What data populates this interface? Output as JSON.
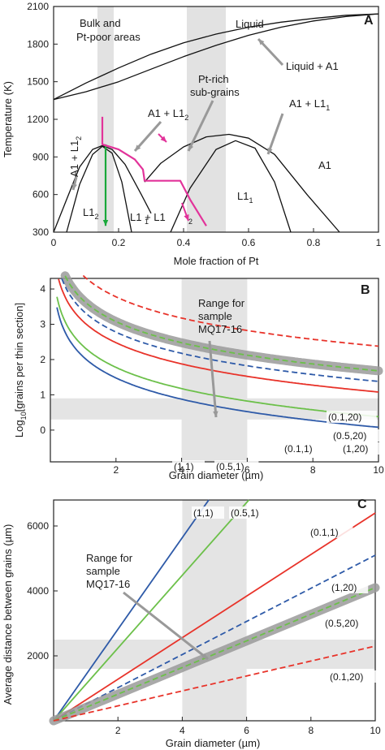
{
  "chart_data": [
    {
      "panel": "A",
      "type": "line",
      "xlabel": "Mole fraction of Pt",
      "ylabel": "Temperature (K)",
      "xlim": [
        0,
        1
      ],
      "ylim": [
        300,
        2100
      ],
      "xticks": [
        "0",
        "0.2",
        "0.4",
        "0.6",
        "0.8",
        "1"
      ],
      "yticks": [
        "300",
        "600",
        "900",
        "1200",
        "1500",
        "1800",
        "2100"
      ],
      "annotations": {
        "bulk": "Bulk and",
        "bulk2": "Pt-poor areas",
        "liquid": "Liquid",
        "liquid_a1": "Liquid + A1",
        "pt_rich": "Pt-rich",
        "pt_rich2": "sub-grains",
        "a1_l12_left": "A1 + L1",
        "a1_l12_top": "A1 + L1",
        "a1_l11": "A1 + L1",
        "a1": "A1",
        "l12": "L1",
        "l11": "L1",
        "l11_l12": "L1  + L1",
        "sub1": "1",
        "sub2": "2"
      },
      "shaded_bands": [
        [
          0.135,
          0.185
        ],
        [
          0.41,
          0.53
        ]
      ],
      "series": [
        {
          "role": "liquidus",
          "x": [
            0,
            0.1,
            0.2,
            0.3,
            0.4,
            0.5,
            0.6,
            0.7,
            0.8,
            0.9,
            1.0
          ],
          "y": [
            1358,
            1490,
            1610,
            1720,
            1810,
            1880,
            1935,
            1975,
            2005,
            2030,
            2041
          ]
        },
        {
          "role": "solidus",
          "x": [
            0,
            0.1,
            0.2,
            0.3,
            0.4,
            0.5,
            0.6,
            0.7,
            0.8,
            0.9,
            1.0
          ],
          "y": [
            1358,
            1420,
            1500,
            1600,
            1700,
            1790,
            1870,
            1935,
            1985,
            2020,
            2041
          ]
        },
        {
          "role": "L12-dome-outer",
          "x": [
            0.0,
            0.04,
            0.08,
            0.12,
            0.15,
            0.18,
            0.22,
            0.27,
            0.3
          ],
          "y": [
            300,
            560,
            820,
            960,
            990,
            960,
            840,
            600,
            450
          ]
        },
        {
          "role": "L12-dome-inner",
          "x": [
            0.04,
            0.08,
            0.12,
            0.15,
            0.18,
            0.21,
            0.24
          ],
          "y": [
            300,
            680,
            920,
            985,
            930,
            700,
            300
          ]
        },
        {
          "role": "L11-dome-outer",
          "x": [
            0.28,
            0.33,
            0.4,
            0.47,
            0.54,
            0.6,
            0.68,
            0.78,
            0.88
          ],
          "y": [
            700,
            850,
            980,
            1060,
            1080,
            1050,
            920,
            600,
            300
          ]
        },
        {
          "role": "L11-dome-inner",
          "x": [
            0.36,
            0.42,
            0.5,
            0.56,
            0.62,
            0.68,
            0.73
          ],
          "y": [
            300,
            650,
            960,
            1030,
            970,
            700,
            300
          ]
        },
        {
          "role": "path-green",
          "x": [
            0.16,
            0.16
          ],
          "y": [
            1000,
            350
          ]
        },
        {
          "role": "path-magenta",
          "x": [
            0.15,
            0.15,
            0.2,
            0.25,
            0.275,
            0.28,
            0.39,
            0.42,
            0.47
          ],
          "y": [
            1220,
            1000,
            960,
            880,
            800,
            710,
            710,
            560,
            350
          ]
        }
      ]
    },
    {
      "panel": "B",
      "type": "line",
      "xlabel": "Grain diameter (µm)",
      "ylabel": "Log",
      "ylabel_sub": "10",
      "ylabel_rest": "[grains per thin section]",
      "xlim": [
        0,
        10
      ],
      "ylim": [
        -0.9,
        4.3
      ],
      "xticks": [
        "2",
        "4",
        "6",
        "8",
        "10"
      ],
      "yticks": [
        "0",
        "1",
        "2",
        "3",
        "4"
      ],
      "annotations": {
        "range1": "Range for",
        "range2": "sample",
        "range3": "MQ17-16"
      },
      "shaded_x": [
        4,
        6
      ],
      "shaded_y": [
        0.3,
        0.9
      ],
      "series": [
        {
          "name": "(0.1,20)",
          "color": "#e8332a",
          "dash": true,
          "offset": 4.38
        },
        {
          "name": "(0.5,20)",
          "color": "#6cc04a",
          "dash": true,
          "offset": 3.68,
          "highlight": true
        },
        {
          "name": "(1,20)",
          "color": "#2e5aa8",
          "dash": true,
          "offset": 3.38
        },
        {
          "name": "(0.1,1)",
          "color": "#e8332a",
          "dash": false,
          "offset": 3.08
        },
        {
          "name": "(0.5,1)",
          "color": "#6cc04a",
          "dash": false,
          "offset": 2.38
        },
        {
          "name": "(1,1)",
          "color": "#2e5aa8",
          "dash": false,
          "offset": 2.08
        }
      ],
      "formula": "y = offset - 2*log10(d)"
    },
    {
      "panel": "C",
      "type": "line",
      "xlabel": "Grain diameter (µm)",
      "ylabel": "Average distance between grains (µm)",
      "xlim": [
        0,
        10
      ],
      "ylim": [
        0,
        6800
      ],
      "xticks": [
        "2",
        "4",
        "6",
        "8",
        "10"
      ],
      "yticks": [
        "2000",
        "4000",
        "6000"
      ],
      "annotations": {
        "range1": "Range for",
        "range2": "sample",
        "range3": "MQ17-16"
      },
      "shaded_x": [
        4,
        6
      ],
      "shaded_y": [
        1600,
        2500
      ],
      "series": [
        {
          "name": "(1,1)",
          "color": "#2e5aa8",
          "dash": false,
          "slope": 1410
        },
        {
          "name": "(0.5,1)",
          "color": "#6cc04a",
          "dash": false,
          "slope": 1120
        },
        {
          "name": "(0.1,1)",
          "color": "#e8332a",
          "dash": false,
          "slope": 640
        },
        {
          "name": "(1,20)",
          "color": "#2e5aa8",
          "dash": true,
          "slope": 510
        },
        {
          "name": "(0.5,20)",
          "color": "#6cc04a",
          "dash": true,
          "slope": 410,
          "highlight": true
        },
        {
          "name": "(0.1,20)",
          "color": "#e8332a",
          "dash": true,
          "slope": 230
        }
      ]
    }
  ]
}
